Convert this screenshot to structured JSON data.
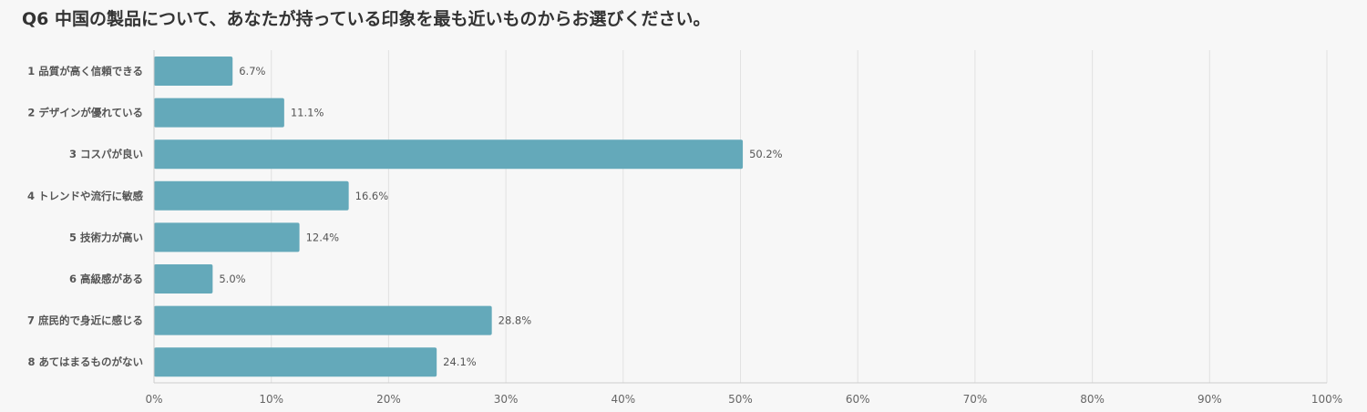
{
  "chart_data": {
    "type": "bar",
    "orientation": "horizontal",
    "title": "Q6 中国の製品について、あなたが持っている印象を最も近いものからお選びください。",
    "categories": [
      "1 品質が高く信頼できる",
      "2 デザインが優れている",
      "3 コスパが良い",
      "4 トレンドや流行に敏感",
      "5 技術力が高い",
      "6 高級感がある",
      "7 庶民的で身近に感じる",
      "8 あてはまるものがない"
    ],
    "values": [
      6.7,
      11.1,
      50.2,
      16.6,
      12.4,
      5.0,
      28.8,
      24.1
    ],
    "value_labels": [
      "6.7%",
      "11.1%",
      "50.2%",
      "16.6%",
      "12.4%",
      "5.0%",
      "28.8%",
      "24.1%"
    ],
    "xlim": [
      0,
      100
    ],
    "xticks": [
      0,
      10,
      20,
      30,
      40,
      50,
      60,
      70,
      80,
      90,
      100
    ],
    "xtick_labels": [
      "0%",
      "10%",
      "20%",
      "30%",
      "40%",
      "50%",
      "60%",
      "70%",
      "80%",
      "90%",
      "100%"
    ],
    "grid": true,
    "bar_color": "#64a9ba",
    "grid_color": "#e2e2e2",
    "axis_color": "#cccccc"
  }
}
